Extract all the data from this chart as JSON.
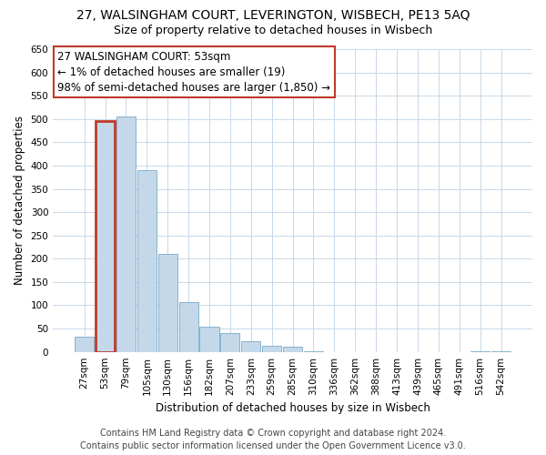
{
  "title": "27, WALSINGHAM COURT, LEVERINGTON, WISBECH, PE13 5AQ",
  "subtitle": "Size of property relative to detached houses in Wisbech",
  "xlabel": "Distribution of detached houses by size in Wisbech",
  "ylabel": "Number of detached properties",
  "categories": [
    "27sqm",
    "53sqm",
    "79sqm",
    "105sqm",
    "130sqm",
    "156sqm",
    "182sqm",
    "207sqm",
    "233sqm",
    "259sqm",
    "285sqm",
    "310sqm",
    "336sqm",
    "362sqm",
    "388sqm",
    "413sqm",
    "439sqm",
    "465sqm",
    "491sqm",
    "516sqm",
    "542sqm"
  ],
  "values": [
    32,
    495,
    505,
    390,
    210,
    107,
    55,
    40,
    22,
    13,
    12,
    1,
    0,
    0,
    0,
    0,
    0,
    0,
    0,
    1,
    1
  ],
  "bar_color": "#c5d8ea",
  "bar_edge_color": "#7aaac8",
  "highlight_bar_index": 1,
  "highlight_bar_outline": "#c0392b",
  "ylim": [
    0,
    650
  ],
  "yticks": [
    0,
    50,
    100,
    150,
    200,
    250,
    300,
    350,
    400,
    450,
    500,
    550,
    600,
    650
  ],
  "annotation_line1": "27 WALSINGHAM COURT: 53sqm",
  "annotation_line2": "← 1% of detached houses are smaller (19)",
  "annotation_line3": "98% of semi-detached houses are larger (1,850) →",
  "footer_line1": "Contains HM Land Registry data © Crown copyright and database right 2024.",
  "footer_line2": "Contains public sector information licensed under the Open Government Licence v3.0.",
  "bg_color": "#ffffff",
  "grid_color": "#c8d8e8",
  "title_fontsize": 10,
  "subtitle_fontsize": 9,
  "axis_label_fontsize": 8.5,
  "tick_fontsize": 7.5,
  "annotation_fontsize": 8.5,
  "footer_fontsize": 7
}
